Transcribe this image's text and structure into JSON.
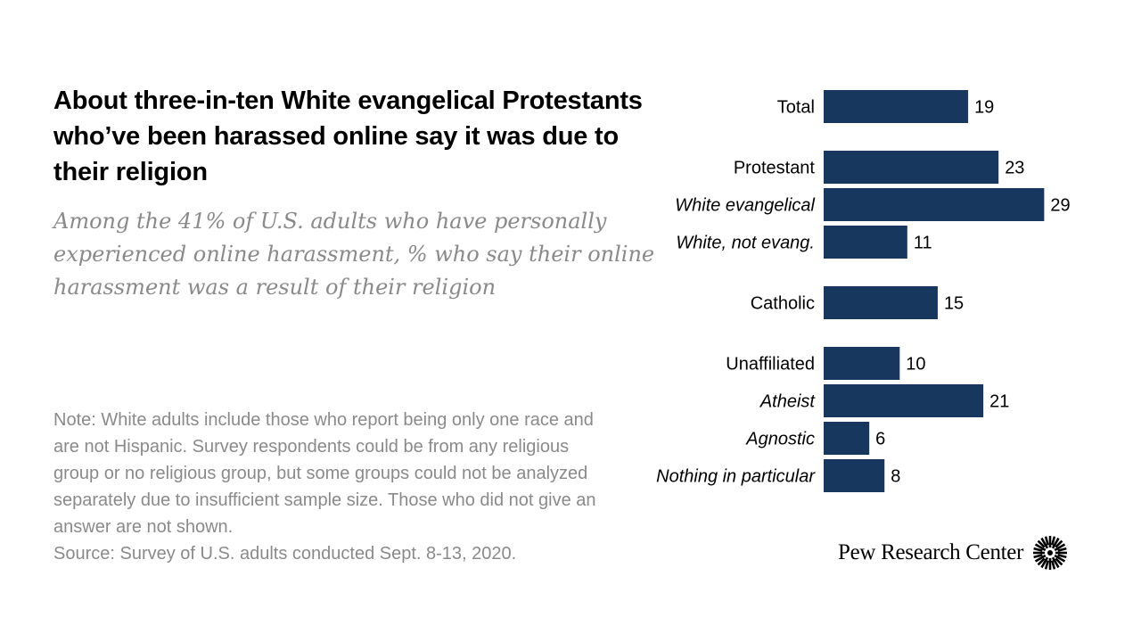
{
  "title": "About three-in-ten White evangelical Protestants who’ve been harassed online say it was due to their religion",
  "subtitle": "Among the 41% of U.S. adults who have personally experienced online harassment, % who say their online harassment was a result of their religion",
  "note": "Note: White adults include those who report being only one race and are not Hispanic. Survey respondents could be from any religious group or no religious group, but some groups could not be analyzed separately due to insufficient sample size. Those who did not give an answer are not shown.",
  "source": "Source: Survey of U.S. adults conducted Sept. 8-13, 2020.",
  "logo": {
    "text": "Pew Research Center",
    "icon": "pew-sunburst-icon"
  },
  "colors": {
    "bar": "#17375e",
    "label": "#000000",
    "muted": "#8a8a8a"
  },
  "chart_data": {
    "type": "bar",
    "orientation": "horizontal",
    "title": "",
    "xlabel": "",
    "ylabel": "",
    "xlim": [
      0,
      29
    ],
    "grid": false,
    "categories": [
      "Total",
      "Protestant",
      "White evangelical",
      "White, not evang.",
      "Catholic",
      "Unaffiliated",
      "Atheist",
      "Agnostic",
      "Nothing in particular"
    ],
    "values": [
      19,
      23,
      29,
      11,
      15,
      10,
      21,
      6,
      8
    ],
    "italic": [
      false,
      false,
      true,
      true,
      false,
      false,
      true,
      true,
      true
    ],
    "groups": [
      [
        0
      ],
      [
        1,
        2,
        3
      ],
      [
        4
      ],
      [
        5,
        6,
        7,
        8
      ]
    ]
  }
}
